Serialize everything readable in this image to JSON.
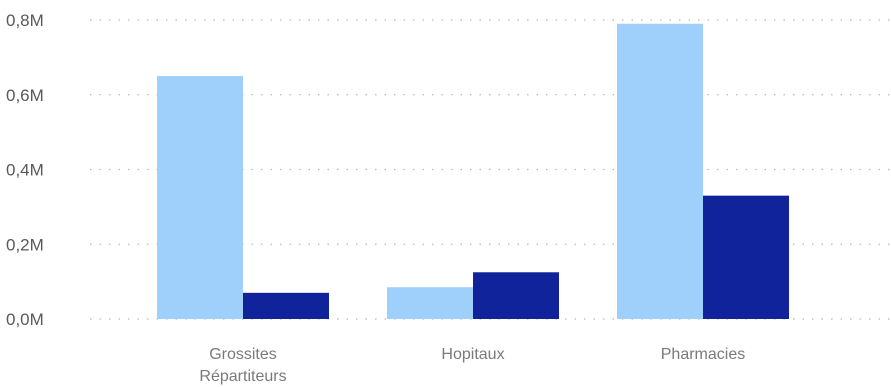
{
  "chart_data": {
    "type": "bar",
    "categories": [
      [
        "Grossites",
        "Répartiteurs"
      ],
      [
        "Hopitaux"
      ],
      [
        "Pharmacies"
      ]
    ],
    "series": [
      {
        "values": [
          0.65,
          0.085,
          0.79
        ],
        "color": "#9fd0fb"
      },
      {
        "values": [
          0.07,
          0.125,
          0.33
        ],
        "color": "#11239a"
      }
    ],
    "y_ticks": [
      {
        "value": 0.0,
        "label": "0,0M"
      },
      {
        "value": 0.2,
        "label": "0,2M"
      },
      {
        "value": 0.4,
        "label": "0,4M"
      },
      {
        "value": 0.6,
        "label": "0,6M"
      },
      {
        "value": 0.8,
        "label": "0,8M"
      }
    ],
    "ylim": [
      0,
      0.8
    ],
    "unit": "M",
    "grid": true,
    "legend": "none"
  }
}
